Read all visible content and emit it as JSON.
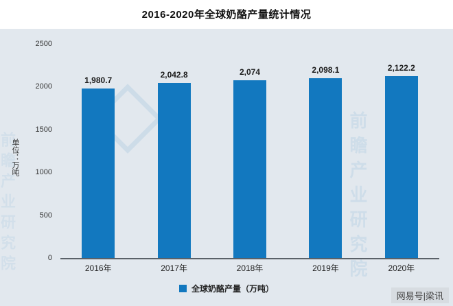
{
  "title": "2016-2020年全球奶酪产量统计情况",
  "chart_data": {
    "type": "bar",
    "title": "2016-2020年全球奶酪产量统计情况",
    "categories": [
      "2016年",
      "2017年",
      "2018年",
      "2019年",
      "2020年"
    ],
    "values": [
      1980.7,
      2042.8,
      2074,
      2098.1,
      2122.2
    ],
    "value_labels": [
      "1,980.7",
      "2,042.8",
      "2,074",
      "2,098.1",
      "2,122.2"
    ],
    "ylabel": "单位：万吨",
    "xlabel": "",
    "ylim": [
      0,
      2500
    ],
    "yticks": [
      0,
      500,
      1000,
      1500,
      2000,
      2500
    ],
    "grid": false,
    "legend": [
      "全球奶酪产量（万吨）"
    ],
    "legend_position": "bottom",
    "bar_color": "#1278bf",
    "plot_background": "#e2e8ee"
  },
  "watermark": {
    "brand": "前瞻产业研究院"
  },
  "footer": {
    "credit": "网易号|梁讯"
  }
}
